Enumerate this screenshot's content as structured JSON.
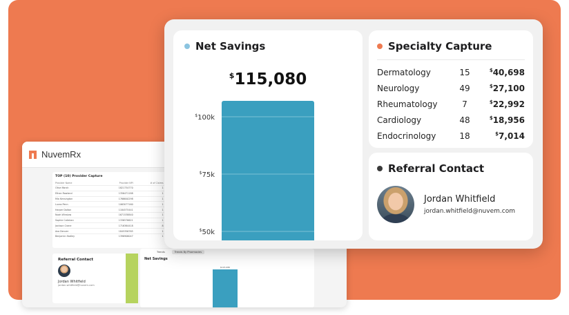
{
  "background_app": {
    "logo_text": "NuvemRx",
    "table": {
      "title": "TOP (10) Provider Capture",
      "headers": [
        "Provider Name",
        "Provider NPI",
        "# of Claims",
        "Savings"
      ],
      "rows": [
        [
          "Olive Marsh",
          "1821734770",
          "1",
          "$17,378"
        ],
        [
          "Ethan Rowland",
          "1356471188",
          "1",
          "$12,498"
        ],
        [
          "Mia Kensington",
          "1766640298",
          "1",
          "$9,290"
        ],
        [
          "Lucas Penn",
          "1063077160",
          "1",
          "$8,740"
        ],
        [
          "Harper Dalton",
          "1184575441",
          "1",
          "$6,401"
        ],
        [
          "Noah Winslow",
          "1671538840",
          "1",
          "$5,962"
        ],
        [
          "Sophie Callahan",
          "1336576621",
          "1",
          "$5,710"
        ],
        [
          "Jackson Crane",
          "1716364418",
          "8",
          "$3,869"
        ],
        [
          "Ava Denver",
          "1845356765",
          "1",
          "$3,657"
        ],
        [
          "Benjamin Hadley",
          "1396906047",
          "1",
          "$3,976"
        ]
      ]
    },
    "referral": {
      "title": "Referral Contact",
      "name": "Jordan Whitfield",
      "email": "jordan.whitfield@nuvem.com"
    },
    "trends": {
      "tabs": [
        "Trends",
        "Trends By Pharmacies"
      ],
      "title": "Net Savings",
      "bar_label": "$115,080"
    }
  },
  "net_savings": {
    "title": "Net Savings",
    "dot_color": "#8bc4e0",
    "value_symbol": "$",
    "value": "115,080"
  },
  "chart_data": {
    "type": "bar",
    "categories": [
      ""
    ],
    "values": [
      115080
    ],
    "ylim": [
      50000,
      115080
    ],
    "y_ticks": [
      {
        "value": 100000,
        "symbol": "$",
        "label": "100k"
      },
      {
        "value": 75000,
        "symbol": "$",
        "label": "75k"
      },
      {
        "value": 50000,
        "symbol": "$",
        "label": "50k"
      }
    ],
    "bar_color": "#3a9fbf",
    "grid": true
  },
  "specialty_capture": {
    "title": "Specialty Capture",
    "dot_color": "#ee7a50",
    "rows": [
      {
        "name": "Dermatology",
        "count": "15",
        "symbol": "$",
        "amount": "40,698"
      },
      {
        "name": "Neurology",
        "count": "49",
        "symbol": "$",
        "amount": "27,100"
      },
      {
        "name": "Rheumatology",
        "count": "7",
        "symbol": "$",
        "amount": "22,992"
      },
      {
        "name": "Cardiology",
        "count": "48",
        "symbol": "$",
        "amount": "18,956"
      },
      {
        "name": "Endocrinology",
        "count": "18",
        "symbol": "$",
        "amount": "7,014"
      }
    ]
  },
  "referral_contact": {
    "title": "Referral Contact",
    "dot_color": "#3a3a3a",
    "name": "Jordan Whitfield",
    "email": "jordan.whitfield@nuvem.com"
  }
}
